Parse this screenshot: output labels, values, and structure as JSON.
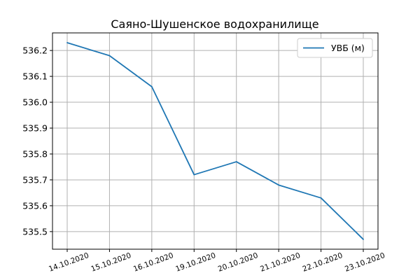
{
  "chart_data": {
    "type": "line",
    "title": "Саяно-Шушенское водохранилище",
    "xlabel": "",
    "ylabel": "",
    "categories": [
      "14.10.2020",
      "15.10.2020",
      "16.10.2020",
      "19.10.2020",
      "20.10.2020",
      "21.10.2020",
      "22.10.2020",
      "23.10.2020"
    ],
    "series": [
      {
        "name": "УВБ (м)",
        "values": [
          536.23,
          536.18,
          536.06,
          535.72,
          535.77,
          535.68,
          535.63,
          535.47
        ]
      }
    ],
    "yticks": [
      "535.5",
      "535.6",
      "535.7",
      "535.8",
      "535.9",
      "536.0",
      "536.1",
      "536.2"
    ],
    "ylim": [
      535.432,
      536.268
    ],
    "grid": true,
    "legend_position": "top-right",
    "colors": {
      "line": "#1f77b4",
      "grid": "#b0b0b0"
    }
  }
}
